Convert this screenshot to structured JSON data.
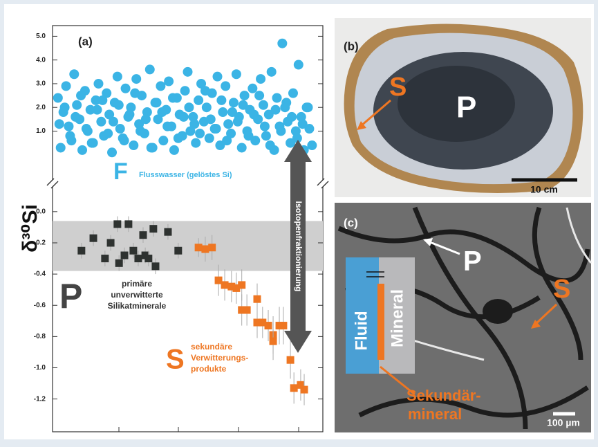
{
  "chart_data": [
    {
      "type": "scatter",
      "panel_label": "(a)",
      "y_label": "δ³⁰Si",
      "xlim": [
        0,
        100
      ],
      "ylim": [
        -1.0,
        5.45
      ],
      "yticks": [
        {
          "value": 1,
          "label": "1.0"
        },
        {
          "value": 2,
          "label": "2.0"
        },
        {
          "value": 3,
          "label": "3.0"
        },
        {
          "value": 4,
          "label": "4.0"
        },
        {
          "value": 5,
          "label": "5.0"
        }
      ],
      "series": [
        {
          "name": "F",
          "description": "Flusswasser (gelöstes Si)",
          "color": "#3bb4e5",
          "marker": "circle",
          "x": [
            2,
            3,
            4,
            5,
            6,
            7,
            8,
            9,
            10,
            11,
            12,
            13,
            14,
            15,
            16,
            17,
            18,
            19,
            20,
            21,
            22,
            23,
            24,
            25,
            26,
            27,
            28,
            29,
            30,
            31,
            32,
            33,
            34,
            35,
            36,
            37,
            38,
            39,
            40,
            41,
            42,
            43,
            44,
            45,
            46,
            47,
            48,
            49,
            50,
            51,
            52,
            53,
            54,
            55,
            56,
            57,
            58,
            59,
            60,
            61,
            62,
            63,
            64,
            65,
            66,
            67,
            68,
            69,
            70,
            71,
            72,
            73,
            74,
            75,
            76,
            77,
            78,
            79,
            80,
            81,
            82,
            83,
            84,
            85,
            86,
            87,
            88,
            89,
            90,
            91,
            92,
            93,
            94,
            95,
            96,
            2.5,
            4.5,
            6.5,
            8.5,
            10.5,
            12.5,
            14.5,
            16.5,
            18.5,
            20.5,
            22.5,
            24.5,
            26.5,
            28.5,
            30.5,
            32.5,
            34.5,
            36.5,
            38.5,
            40.5,
            42.5,
            44.5,
            46.5,
            48.5,
            50.5,
            52.5,
            54.5,
            56.5,
            58.5,
            60.5,
            62.5,
            64.5,
            66.5,
            68.5,
            70.5,
            72.5,
            74.5,
            76.5,
            78.5,
            80.5,
            82.5,
            84.5,
            86.5,
            88.5,
            90.5,
            92.5,
            94.5
          ],
          "values": [
            2.4,
            0.3,
            1.8,
            2.9,
            1.2,
            0.6,
            3.4,
            2.1,
            1.5,
            0.2,
            2.7,
            1.0,
            1.9,
            0.5,
            2.3,
            3.0,
            1.4,
            0.8,
            2.6,
            1.7,
            0.1,
            2.2,
            3.3,
            1.1,
            0.7,
            2.8,
            1.6,
            2.0,
            0.4,
            3.2,
            1.3,
            2.5,
            0.9,
            1.8,
            3.6,
            0.3,
            2.2,
            1.5,
            2.9,
            0.6,
            1.9,
            3.1,
            1.2,
            0.2,
            2.4,
            1.7,
            0.8,
            2.7,
            3.5,
            1.0,
            1.6,
            0.5,
            2.3,
            3.0,
            1.4,
            2.0,
            0.7,
            2.6,
            1.1,
            3.3,
            0.4,
            1.8,
            2.9,
            1.3,
            0.9,
            2.2,
            3.4,
            1.6,
            0.3,
            2.5,
            1.0,
            1.9,
            2.8,
            0.6,
            1.5,
            3.2,
            2.1,
            0.8,
            1.7,
            3.5,
            0.2,
            2.4,
            1.2,
            4.7,
            2.0,
            1.4,
            0.5,
            2.6,
            1.0,
            3.8,
            1.6,
            0.2,
            2.0,
            1.1,
            0.4,
            1.3,
            2.0,
            0.8,
            1.6,
            2.5,
            1.1,
            0.5,
            1.9,
            2.3,
            0.9,
            1.4,
            2.1,
            0.6,
            1.7,
            2.6,
            1.0,
            1.5,
            0.3,
            2.2,
            1.8,
            1.2,
            2.4,
            0.7,
            1.6,
            2.0,
            1.3,
            0.9,
            2.7,
            1.5,
            1.1,
            2.3,
            0.6,
            1.8,
            1.4,
            2.1,
            0.8,
            1.7,
            2.5,
            1.2,
            0.4,
            1.9,
            1.0,
            2.2,
            1.6,
            0.7,
            1.3,
            2.0
          ]
        }
      ]
    },
    {
      "type": "scatter",
      "xlim": [
        0,
        100
      ],
      "ylim": [
        -1.41,
        0.15
      ],
      "yticks": [
        {
          "value": 0,
          "label": "0.0"
        },
        -0.2,
        -0.4,
        -0.6,
        -0.8,
        {
          "value": -1,
          "label": "-1.0"
        },
        -1.2
      ],
      "band": [
        -0.38,
        -0.06
      ],
      "annotation": "Isotopenfraktionierung",
      "series": [
        {
          "name": "P",
          "description": [
            "primäre",
            "unverwitterte",
            "Silikatminerale"
          ],
          "color": "#2e3230",
          "marker": "square",
          "x": [
            10.7,
            15.1,
            19.4,
            21.5,
            24,
            24.6,
            26.6,
            28.1,
            29.9,
            31.7,
            33.5,
            34.3,
            35.5,
            37.3,
            38.1,
            42.7,
            46.5
          ],
          "values": [
            -0.25,
            -0.17,
            -0.3,
            -0.2,
            -0.08,
            -0.33,
            -0.28,
            -0.08,
            -0.25,
            -0.3,
            -0.15,
            -0.28,
            -0.3,
            -0.11,
            -0.35,
            -0.13,
            -0.25
          ],
          "errors": [
            0.05,
            0.05,
            0.05,
            0.05,
            0.05,
            0.05,
            0.05,
            0.05,
            0.05,
            0.05,
            0.05,
            0.05,
            0.05,
            0.05,
            0.05,
            0.05,
            0.05
          ]
        },
        {
          "name": "S",
          "description": [
            "sekundäre",
            "Verwitterungs-",
            "produkte"
          ],
          "color": "#ee7622",
          "marker": "square",
          "x": [
            54,
            56.5,
            59,
            61.4,
            63.7,
            66.2,
            68,
            70,
            70,
            71.9,
            75.7,
            75.7,
            77.7,
            79.8,
            81.6,
            83.9,
            81.6,
            85.4,
            88,
            89.3,
            91.8,
            93.1
          ],
          "values": [
            -0.23,
            -0.24,
            -0.23,
            -0.44,
            -0.47,
            -0.48,
            -0.49,
            -0.47,
            -0.63,
            -0.63,
            -0.56,
            -0.71,
            -0.71,
            -0.73,
            -0.79,
            -0.73,
            -0.83,
            -0.73,
            -0.95,
            -1.13,
            -1.11,
            -1.14
          ],
          "errors": [
            0.06,
            0.08,
            0.08,
            0.1,
            0.1,
            0.1,
            0.1,
            0.1,
            0.1,
            0.1,
            0.1,
            0.1,
            0.1,
            0.1,
            0.12,
            0.12,
            0.12,
            0.12,
            0.12,
            0.1,
            0.1,
            0.1
          ]
        }
      ]
    }
  ],
  "panel_b": {
    "label": "(b)",
    "S": "S",
    "P": "P",
    "scale": "10 cm"
  },
  "panel_c": {
    "label": "(c)",
    "P": "P",
    "S": "S",
    "fluid": "Fluid",
    "mineral": "Mineral",
    "secondary": [
      "Sekundär-",
      "mineral"
    ],
    "scale": "100 µm"
  }
}
